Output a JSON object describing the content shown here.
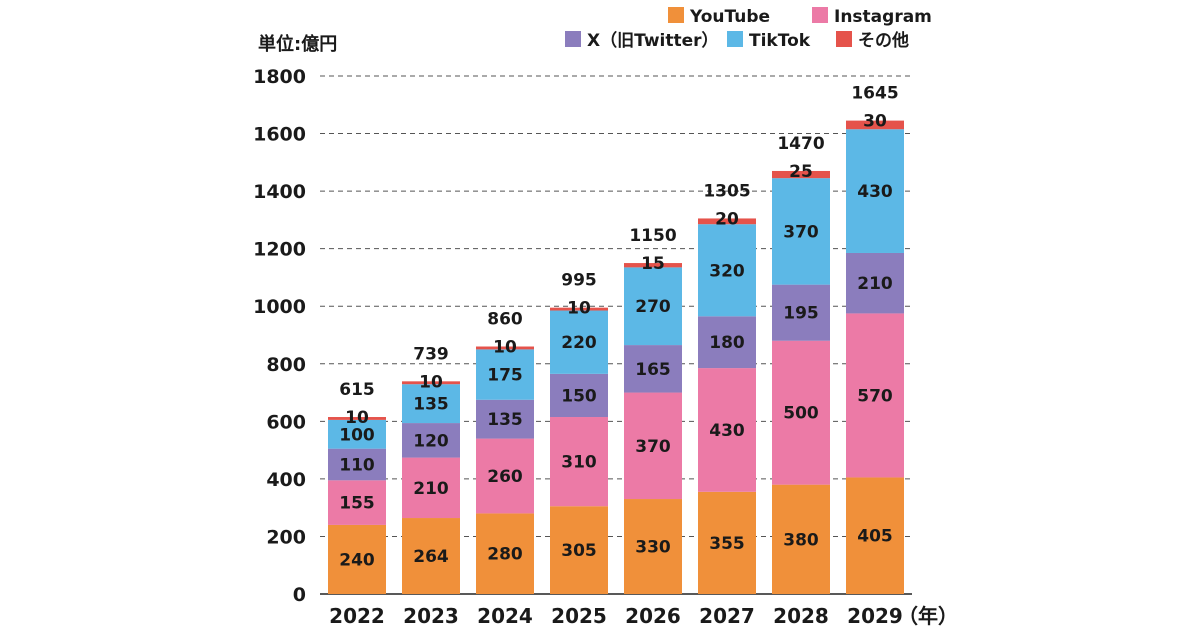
{
  "chart_data": {
    "type": "bar",
    "stacked": true,
    "title": "",
    "unit_label": "単位:億円",
    "xlabel": "",
    "x_unit_label": "（年）",
    "ylabel": "",
    "ylim": [
      0,
      1800
    ],
    "yticks": [
      0,
      200,
      400,
      600,
      800,
      1000,
      1200,
      1400,
      1600,
      1800
    ],
    "grid": true,
    "legend_position": "top-right",
    "categories": [
      "2022",
      "2023",
      "2024",
      "2025",
      "2026",
      "2027",
      "2028",
      "2029"
    ],
    "totals": [
      615,
      739,
      860,
      995,
      1150,
      1305,
      1470,
      1645
    ],
    "series": [
      {
        "name": "YouTube",
        "color": "#F0903A",
        "values": [
          240,
          264,
          280,
          305,
          330,
          355,
          380,
          405
        ]
      },
      {
        "name": "Instagram",
        "color": "#EC7AA6",
        "values": [
          155,
          210,
          260,
          310,
          370,
          430,
          500,
          570
        ]
      },
      {
        "name": "X（旧Twitter）",
        "color": "#8B7DBD",
        "values": [
          110,
          120,
          135,
          150,
          165,
          180,
          195,
          210
        ]
      },
      {
        "name": "TikTok",
        "color": "#5CB8E6",
        "values": [
          100,
          135,
          175,
          220,
          270,
          320,
          370,
          430
        ]
      },
      {
        "name": "その他",
        "color": "#E5534B",
        "values": [
          10,
          10,
          10,
          10,
          15,
          20,
          25,
          30
        ]
      }
    ]
  }
}
